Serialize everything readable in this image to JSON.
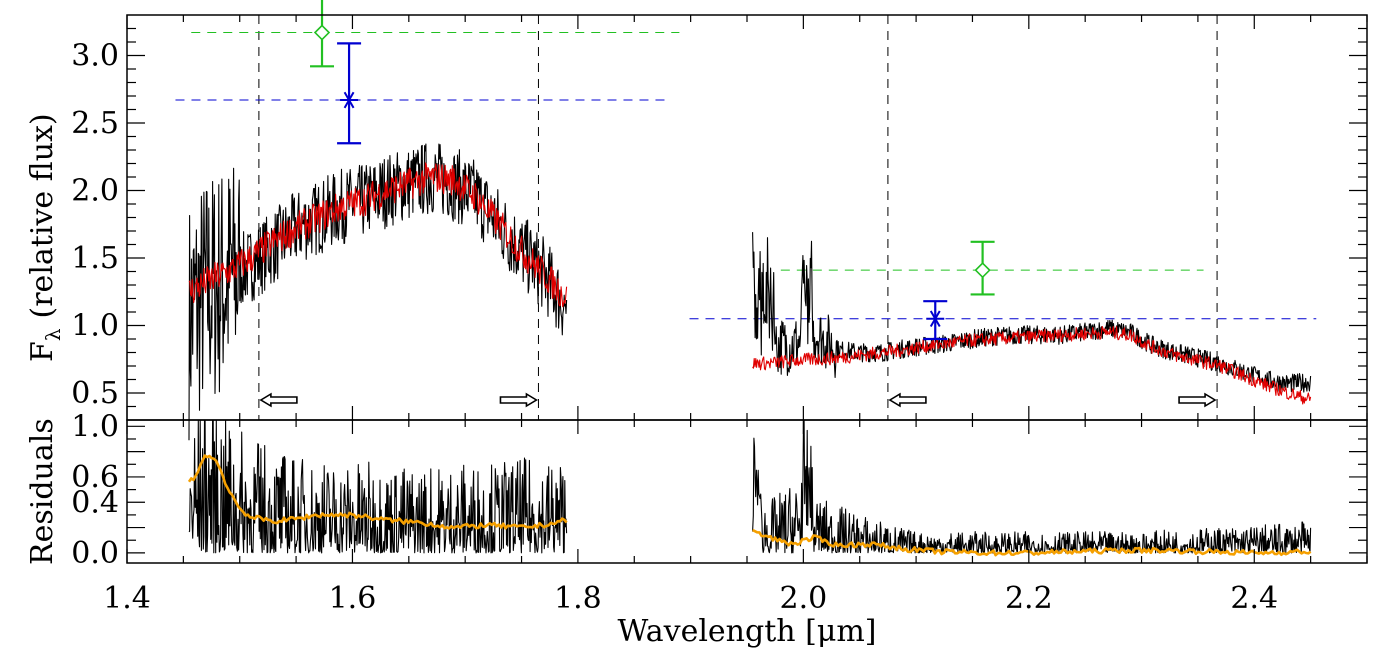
{
  "chart_data": [
    {
      "panel": "top",
      "type": "line",
      "ylabel": "F",
      "ylabel_sub": "λ",
      "ylabel_rest": "(relative flux)",
      "xlim": [
        1.4,
        2.5
      ],
      "ylim": [
        0.3,
        3.3
      ],
      "yticks": [
        0.5,
        1.0,
        1.5,
        2.0,
        2.5,
        3.0
      ],
      "ytick_labels": [
        "0.5",
        "1.0",
        "1.5",
        "2.0",
        "2.5",
        "3.0"
      ],
      "colors": {
        "observed": "#000000",
        "model": "#e00000",
        "photometry_a": "#22c022",
        "photometry_b": "#0000d0"
      },
      "observed_segments": [
        {
          "x": [
            1.455,
            1.47,
            1.49,
            1.51,
            1.53,
            1.55,
            1.57,
            1.59,
            1.61,
            1.63,
            1.65,
            1.67,
            1.69,
            1.71,
            1.73,
            1.75,
            1.77,
            1.79
          ],
          "y": [
            1.05,
            1.25,
            1.35,
            1.45,
            1.58,
            1.72,
            1.8,
            1.88,
            1.92,
            2.0,
            2.05,
            2.1,
            2.05,
            1.95,
            1.75,
            1.55,
            1.38,
            1.12
          ]
        },
        {
          "x": [
            1.955,
            1.97,
            1.99,
            2.01,
            2.03,
            2.05,
            2.07,
            2.09,
            2.11,
            2.13,
            2.15,
            2.17,
            2.19,
            2.21,
            2.23,
            2.25,
            2.27,
            2.29,
            2.31,
            2.33,
            2.35,
            2.37,
            2.39,
            2.41,
            2.43,
            2.45
          ],
          "y": [
            0.95,
            0.85,
            0.85,
            0.95,
            0.82,
            0.8,
            0.8,
            0.83,
            0.85,
            0.87,
            0.9,
            0.92,
            0.93,
            0.93,
            0.93,
            0.95,
            0.98,
            0.95,
            0.85,
            0.8,
            0.76,
            0.72,
            0.66,
            0.6,
            0.57,
            0.58
          ]
        }
      ],
      "model_segments": [
        {
          "x": [
            1.455,
            1.47,
            1.49,
            1.51,
            1.53,
            1.55,
            1.57,
            1.59,
            1.61,
            1.63,
            1.65,
            1.67,
            1.69,
            1.71,
            1.73,
            1.75,
            1.77,
            1.79
          ],
          "y": [
            1.25,
            1.32,
            1.4,
            1.5,
            1.62,
            1.72,
            1.8,
            1.88,
            1.93,
            2.0,
            2.05,
            2.1,
            2.08,
            1.95,
            1.75,
            1.55,
            1.38,
            1.2
          ]
        },
        {
          "x": [
            1.955,
            1.97,
            1.99,
            2.01,
            2.03,
            2.05,
            2.07,
            2.09,
            2.11,
            2.13,
            2.15,
            2.17,
            2.19,
            2.21,
            2.23,
            2.25,
            2.27,
            2.29,
            2.31,
            2.33,
            2.35,
            2.37,
            2.39,
            2.41,
            2.43,
            2.45
          ],
          "y": [
            0.72,
            0.72,
            0.74,
            0.75,
            0.76,
            0.78,
            0.8,
            0.82,
            0.85,
            0.87,
            0.89,
            0.9,
            0.91,
            0.92,
            0.93,
            0.94,
            0.95,
            0.93,
            0.84,
            0.78,
            0.74,
            0.7,
            0.63,
            0.56,
            0.5,
            0.45
          ]
        }
      ],
      "photometry": [
        {
          "marker": "diamond",
          "color": "#22c022",
          "x": 1.573,
          "y": 3.17,
          "y_lo": 2.92,
          "y_hi": 3.42,
          "level": 3.17,
          "level_xrange": [
            1.457,
            1.89
          ]
        },
        {
          "marker": "star",
          "color": "#0000d0",
          "x": 1.597,
          "y": 2.67,
          "y_lo": 2.35,
          "y_hi": 3.09,
          "level": 2.67,
          "level_xrange": [
            1.443,
            1.879
          ]
        },
        {
          "marker": "diamond",
          "color": "#22c022",
          "x": 2.159,
          "y": 1.41,
          "y_lo": 1.23,
          "y_hi": 1.62,
          "level": 1.41,
          "level_xrange": [
            1.98,
            2.355
          ]
        },
        {
          "marker": "star",
          "color": "#0000d0",
          "x": 2.117,
          "y": 1.05,
          "y_lo": 0.9,
          "y_hi": 1.18,
          "level": 1.05,
          "level_xrange": [
            1.899,
            2.455
          ]
        }
      ],
      "filter_edges": [
        1.517,
        1.765,
        2.075,
        2.367
      ],
      "edge_arrows": [
        {
          "x": 1.517,
          "direction": "right"
        },
        {
          "x": 1.765,
          "direction": "right"
        },
        {
          "x": 2.075,
          "direction": "right"
        },
        {
          "x": 2.367,
          "direction": "right"
        }
      ]
    },
    {
      "panel": "bottom",
      "type": "line",
      "ylabel": "Residuals",
      "xlabel": "Wavelength [μm]",
      "xlim": [
        1.4,
        2.5
      ],
      "ylim": [
        -0.08,
        1.05
      ],
      "yticks": [
        0.0,
        0.2,
        0.4,
        0.6,
        0.8,
        1.0
      ],
      "ytick_labels": [
        "0.0",
        "0.4",
        "0.6",
        "1.0"
      ],
      "ytick_labels_at": [
        0.0,
        0.4,
        0.6,
        1.0
      ],
      "xticks": [
        1.4,
        1.6,
        1.8,
        2.0,
        2.2,
        2.4
      ],
      "xtick_labels": [
        "1.4",
        "1.6",
        "1.8",
        "2.0",
        "2.2",
        "2.4"
      ],
      "colors": {
        "residuals": "#000000",
        "smoothed": "#f5a000"
      },
      "smoothed_segments": [
        {
          "x": [
            1.455,
            1.46,
            1.47,
            1.48,
            1.49,
            1.5,
            1.51,
            1.53,
            1.55,
            1.57,
            1.6,
            1.63,
            1.66,
            1.69,
            1.72,
            1.75,
            1.77,
            1.79
          ],
          "y": [
            0.55,
            0.6,
            0.78,
            0.72,
            0.5,
            0.35,
            0.28,
            0.25,
            0.27,
            0.3,
            0.3,
            0.26,
            0.24,
            0.2,
            0.22,
            0.2,
            0.22,
            0.26
          ]
        },
        {
          "x": [
            1.955,
            1.97,
            1.99,
            2.01,
            2.03,
            2.06,
            2.09,
            2.12,
            2.16,
            2.2,
            2.24,
            2.28,
            2.32,
            2.36,
            2.4,
            2.45
          ],
          "y": [
            0.17,
            0.12,
            0.07,
            0.12,
            0.06,
            0.07,
            0.03,
            0.01,
            0.0,
            0.0,
            0.01,
            0.02,
            0.02,
            0.01,
            0.0,
            0.01
          ]
        }
      ],
      "residual_segments": [
        {
          "xrange": [
            1.455,
            1.79
          ],
          "envelope": [
            [
              1.455,
              0.75
            ],
            [
              1.47,
              1.0
            ],
            [
              1.5,
              0.7
            ],
            [
              1.55,
              0.55
            ],
            [
              1.65,
              0.5
            ],
            [
              1.79,
              0.55
            ]
          ]
        },
        {
          "xrange": [
            1.955,
            2.45
          ],
          "envelope": [
            [
              1.955,
              0.5
            ],
            [
              1.97,
              0.3
            ],
            [
              2.0,
              0.45
            ],
            [
              2.02,
              0.3
            ],
            [
              2.06,
              0.2
            ],
            [
              2.1,
              0.12
            ],
            [
              2.3,
              0.12
            ],
            [
              2.45,
              0.18
            ]
          ]
        }
      ]
    }
  ]
}
